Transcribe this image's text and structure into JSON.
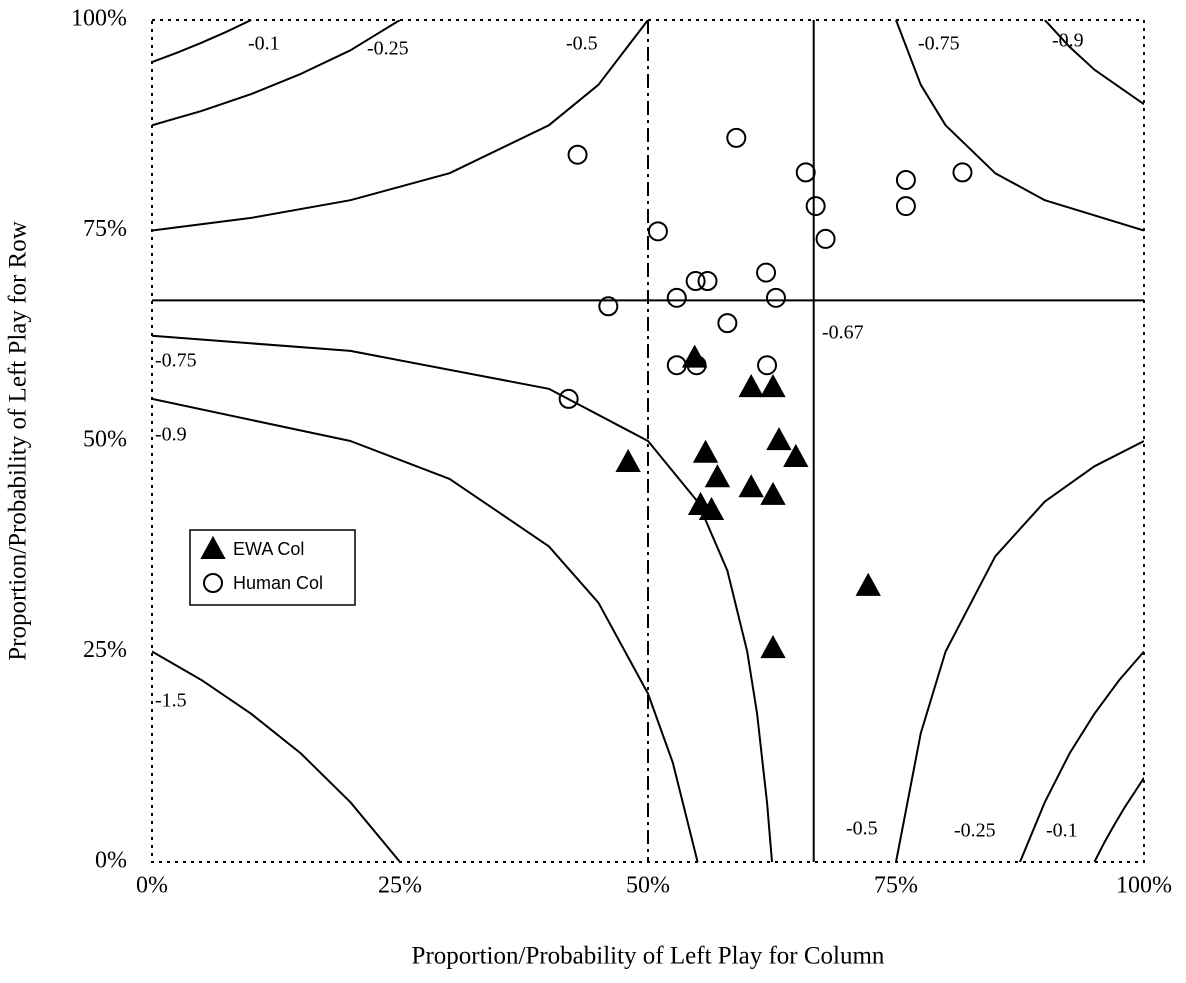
{
  "chart_data": {
    "type": "scatter",
    "xlabel": "Proportion/Probability of Left Play for Column",
    "ylabel": "Proportion/Probability of Left Play for Row",
    "xlim": [
      0,
      100
    ],
    "ylim": [
      0,
      100
    ],
    "xticks": [
      {
        "value": 0,
        "label": "0%"
      },
      {
        "value": 25,
        "label": "25%"
      },
      {
        "value": 50,
        "label": "50%"
      },
      {
        "value": 75,
        "label": "75%"
      },
      {
        "value": 100,
        "label": "100%"
      }
    ],
    "yticks": [
      {
        "value": 0,
        "label": "0%"
      },
      {
        "value": 25,
        "label": "25%"
      },
      {
        "value": 50,
        "label": "50%"
      },
      {
        "value": 75,
        "label": "75%"
      },
      {
        "value": 100,
        "label": "100%"
      }
    ],
    "legend": "center left",
    "series": [
      {
        "name": "EWA Col",
        "color": "#000000",
        "marker": "triangle",
        "filled": true,
        "x": [
          54.7,
          60.4,
          62.6,
          63.2,
          48.0,
          55.8,
          57.0,
          60.4,
          62.6,
          64.9,
          55.3,
          56.4,
          62.6,
          72.2
        ],
        "values": [
          59.9,
          56.4,
          56.4,
          50.1,
          47.5,
          48.6,
          45.7,
          44.5,
          43.6,
          48.1,
          42.4,
          41.8,
          25.4,
          32.8
        ]
      },
      {
        "name": "Human Col",
        "color": "#000000",
        "marker": "circle",
        "filled": false,
        "x": [
          42.9,
          58.9,
          65.9,
          81.7,
          76.0,
          76.0,
          66.9,
          51.0,
          67.9,
          61.9,
          54.8,
          56.0,
          52.9,
          62.9,
          46.0,
          58.0,
          52.9,
          54.9,
          62.0,
          42.0
        ],
        "values": [
          84.0,
          86.0,
          81.9,
          81.9,
          81.0,
          77.9,
          77.9,
          74.9,
          74.0,
          70.0,
          69.0,
          69.0,
          67.0,
          67.0,
          66.0,
          64.0,
          59.0,
          59.0,
          59.0,
          55.0
        ]
      }
    ],
    "contours": [
      {
        "label": "-0.1",
        "color": "#000000",
        "x": [
          0,
          2.5,
          5,
          7.5,
          10
        ],
        "y": [
          95.0,
          96.1,
          97.3,
          98.6,
          100.0
        ]
      },
      {
        "label": "-0.25",
        "color": "#000000",
        "x": [
          0,
          5,
          10,
          15,
          20,
          25
        ],
        "y": [
          87.5,
          89.2,
          91.2,
          93.6,
          96.4,
          100.0
        ]
      },
      {
        "label": "-0.5",
        "color": "#000000",
        "x": [
          0,
          10,
          20,
          30,
          40,
          45,
          50
        ],
        "y": [
          75.0,
          76.5,
          78.6,
          81.8,
          87.5,
          92.3,
          100.0
        ]
      },
      {
        "label": "-0.75",
        "color": "#000000",
        "x": [
          75,
          77.5,
          80,
          85,
          90,
          100
        ],
        "y": [
          100.0,
          92.3,
          87.5,
          81.8,
          78.6,
          75.0
        ]
      },
      {
        "label": "-0.9",
        "color": "#000000",
        "x": [
          90,
          92.5,
          95,
          100
        ],
        "y": [
          100.0,
          96.8,
          94.1,
          90.0
        ]
      },
      {
        "label": "-0.67",
        "color": "#000000",
        "x": [
          0,
          100,
          null,
          66.7,
          66.7
        ],
        "y": [
          66.7,
          66.7,
          null,
          0,
          100
        ]
      },
      {
        "label": "-0.75",
        "color": "#000000",
        "x": [
          0,
          20,
          40,
          50,
          55,
          58,
          60,
          61,
          62,
          62.5
        ],
        "y": [
          62.5,
          60.7,
          56.2,
          50.0,
          42.8,
          34.6,
          25.0,
          17.6,
          7.1,
          0
        ]
      },
      {
        "label": "-0.9",
        "color": "#000000",
        "x": [
          0,
          20,
          30,
          40,
          45,
          50,
          52.5,
          55
        ],
        "y": [
          55.0,
          50.0,
          45.5,
          37.5,
          30.8,
          20.0,
          11.8,
          0
        ]
      },
      {
        "label": "-1.5",
        "color": "#000000",
        "x": [
          0,
          5,
          10,
          15,
          20,
          25
        ],
        "y": [
          25.0,
          21.6,
          17.6,
          12.9,
          7.1,
          0
        ]
      },
      {
        "label": "-0.5",
        "color": "#000000",
        "x": [
          75,
          77.5,
          80,
          85,
          90,
          95,
          100
        ],
        "y": [
          0,
          15.3,
          25.0,
          36.3,
          42.8,
          47.0,
          50.0
        ]
      },
      {
        "label": "-0.25",
        "color": "#000000",
        "x": [
          87.5,
          90,
          92.5,
          95,
          97.5,
          100
        ],
        "y": [
          0,
          7.1,
          12.9,
          17.6,
          21.6,
          25.0
        ]
      },
      {
        "label": "-0.1",
        "color": "#000000",
        "x": [
          95,
          96,
          97,
          98,
          99,
          100
        ],
        "y": [
          0,
          2.3,
          4.4,
          6.4,
          8.2,
          10.0
        ]
      }
    ],
    "reference_line": {
      "x": 50,
      "dash": "dash-dot"
    }
  }
}
